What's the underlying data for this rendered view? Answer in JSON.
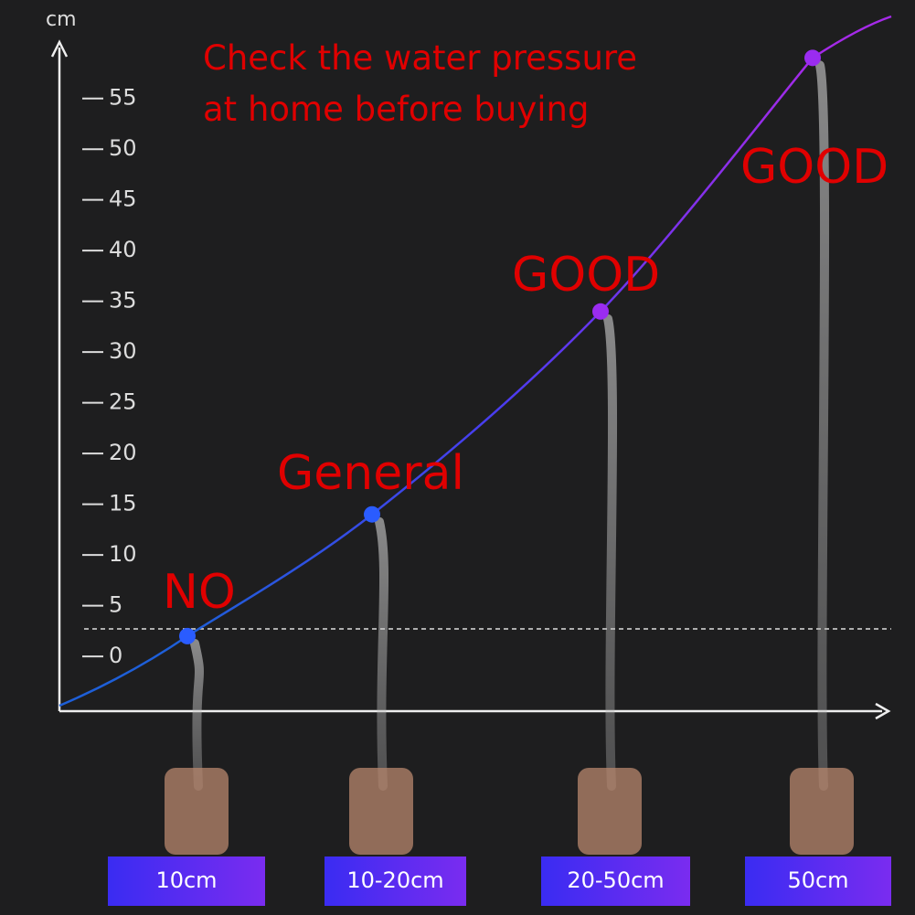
{
  "chart_data": {
    "type": "line",
    "title": "Check the water pressure at home before buying",
    "y_label": "cm",
    "categories": [
      "10cm",
      "10-20cm",
      "20-50cm",
      "50cm"
    ],
    "values": [
      2,
      14,
      34,
      59
    ],
    "annotations": [
      "NO",
      "General",
      "GOOD",
      "GOOD"
    ],
    "colors": [
      "#2a5cff",
      "#2a5cff",
      "#9a2cf0",
      "#9a2cf0"
    ],
    "ylim": [
      -5.4,
      60.2
    ],
    "yticks": [
      0,
      5,
      10,
      15,
      20,
      25,
      30,
      35,
      40,
      45,
      50,
      55
    ]
  }
}
